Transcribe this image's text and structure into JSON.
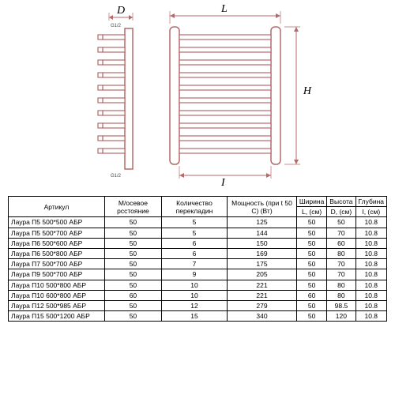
{
  "diagram": {
    "labels": {
      "D": "D",
      "L": "L",
      "H": "H",
      "I": "I"
    },
    "connectors": {
      "top": "G1/2",
      "bottom": "G1/2"
    },
    "side_view": {
      "rung_count": 10,
      "stroke": "#b56a6a"
    },
    "front_view": {
      "rung_count": 10,
      "stroke": "#b56a6a"
    },
    "arrow_color": "#b56a6a"
  },
  "table": {
    "headers": {
      "artikul": "Артикул",
      "spacing": "М/осевое рсстояние",
      "count": "Количество перекладин",
      "power": "Мощность (при t 50 C) (Вт)",
      "width": "Ширина",
      "height": "Высота",
      "depth": "Глубина",
      "L": "L, (см)",
      "D": "D, (см)",
      "I": "I, (см)"
    },
    "rows": [
      {
        "a": "Лаура П5 500*500 АБР",
        "s": "50",
        "c": "5",
        "p": "125",
        "L": "50",
        "D": "50",
        "I": "10.8"
      },
      {
        "a": "Лаура П5 500*700 АБР",
        "s": "50",
        "c": "5",
        "p": "144",
        "L": "50",
        "D": "70",
        "I": "10.8"
      },
      {
        "a": "Лаура П6 500*600 АБР",
        "s": "50",
        "c": "6",
        "p": "150",
        "L": "50",
        "D": "60",
        "I": "10.8"
      },
      {
        "a": "Лаура П6 500*800 АБР",
        "s": "50",
        "c": "6",
        "p": "169",
        "L": "50",
        "D": "80",
        "I": "10.8"
      },
      {
        "a": "Лаура П7 500*700 АБР",
        "s": "50",
        "c": "7",
        "p": "175",
        "L": "50",
        "D": "70",
        "I": "10.8"
      },
      {
        "a": "Лаура П9 500*700 АБР",
        "s": "50",
        "c": "9",
        "p": "205",
        "L": "50",
        "D": "70",
        "I": "10.8"
      },
      {
        "a": "Лаура П10 500*800 АБР",
        "s": "50",
        "c": "10",
        "p": "221",
        "L": "50",
        "D": "80",
        "I": "10.8"
      },
      {
        "a": "Лаура П10 600*800 АБР",
        "s": "60",
        "c": "10",
        "p": "221",
        "L": "60",
        "D": "80",
        "I": "10.8"
      },
      {
        "a": "Лаура П12 500*985 АБР",
        "s": "50",
        "c": "12",
        "p": "279",
        "L": "50",
        "D": "98.5",
        "I": "10.8"
      },
      {
        "a": "Лаура П15 500*1200 АБР",
        "s": "50",
        "c": "15",
        "p": "340",
        "L": "50",
        "D": "120",
        "I": "10.8"
      }
    ]
  }
}
